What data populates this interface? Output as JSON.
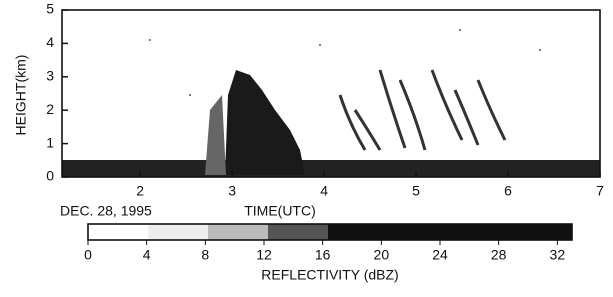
{
  "chart_data": {
    "type": "heatmap",
    "y_label": "HEIGHT(km)",
    "x_label": "TIME(UTC)",
    "date": "DEC. 28, 1995",
    "xlim": [
      1.15,
      7
    ],
    "xticks": [
      2,
      3,
      4,
      5,
      6,
      7
    ],
    "ylim": [
      0,
      5
    ],
    "yticks": [
      0,
      1,
      2,
      3,
      4,
      5
    ],
    "colorbar": {
      "label": "REFLECTIVITY (dBZ)",
      "lim": [
        0,
        33
      ],
      "ticks": [
        0,
        4,
        8,
        12,
        16,
        20,
        24,
        28,
        32
      ]
    }
  }
}
